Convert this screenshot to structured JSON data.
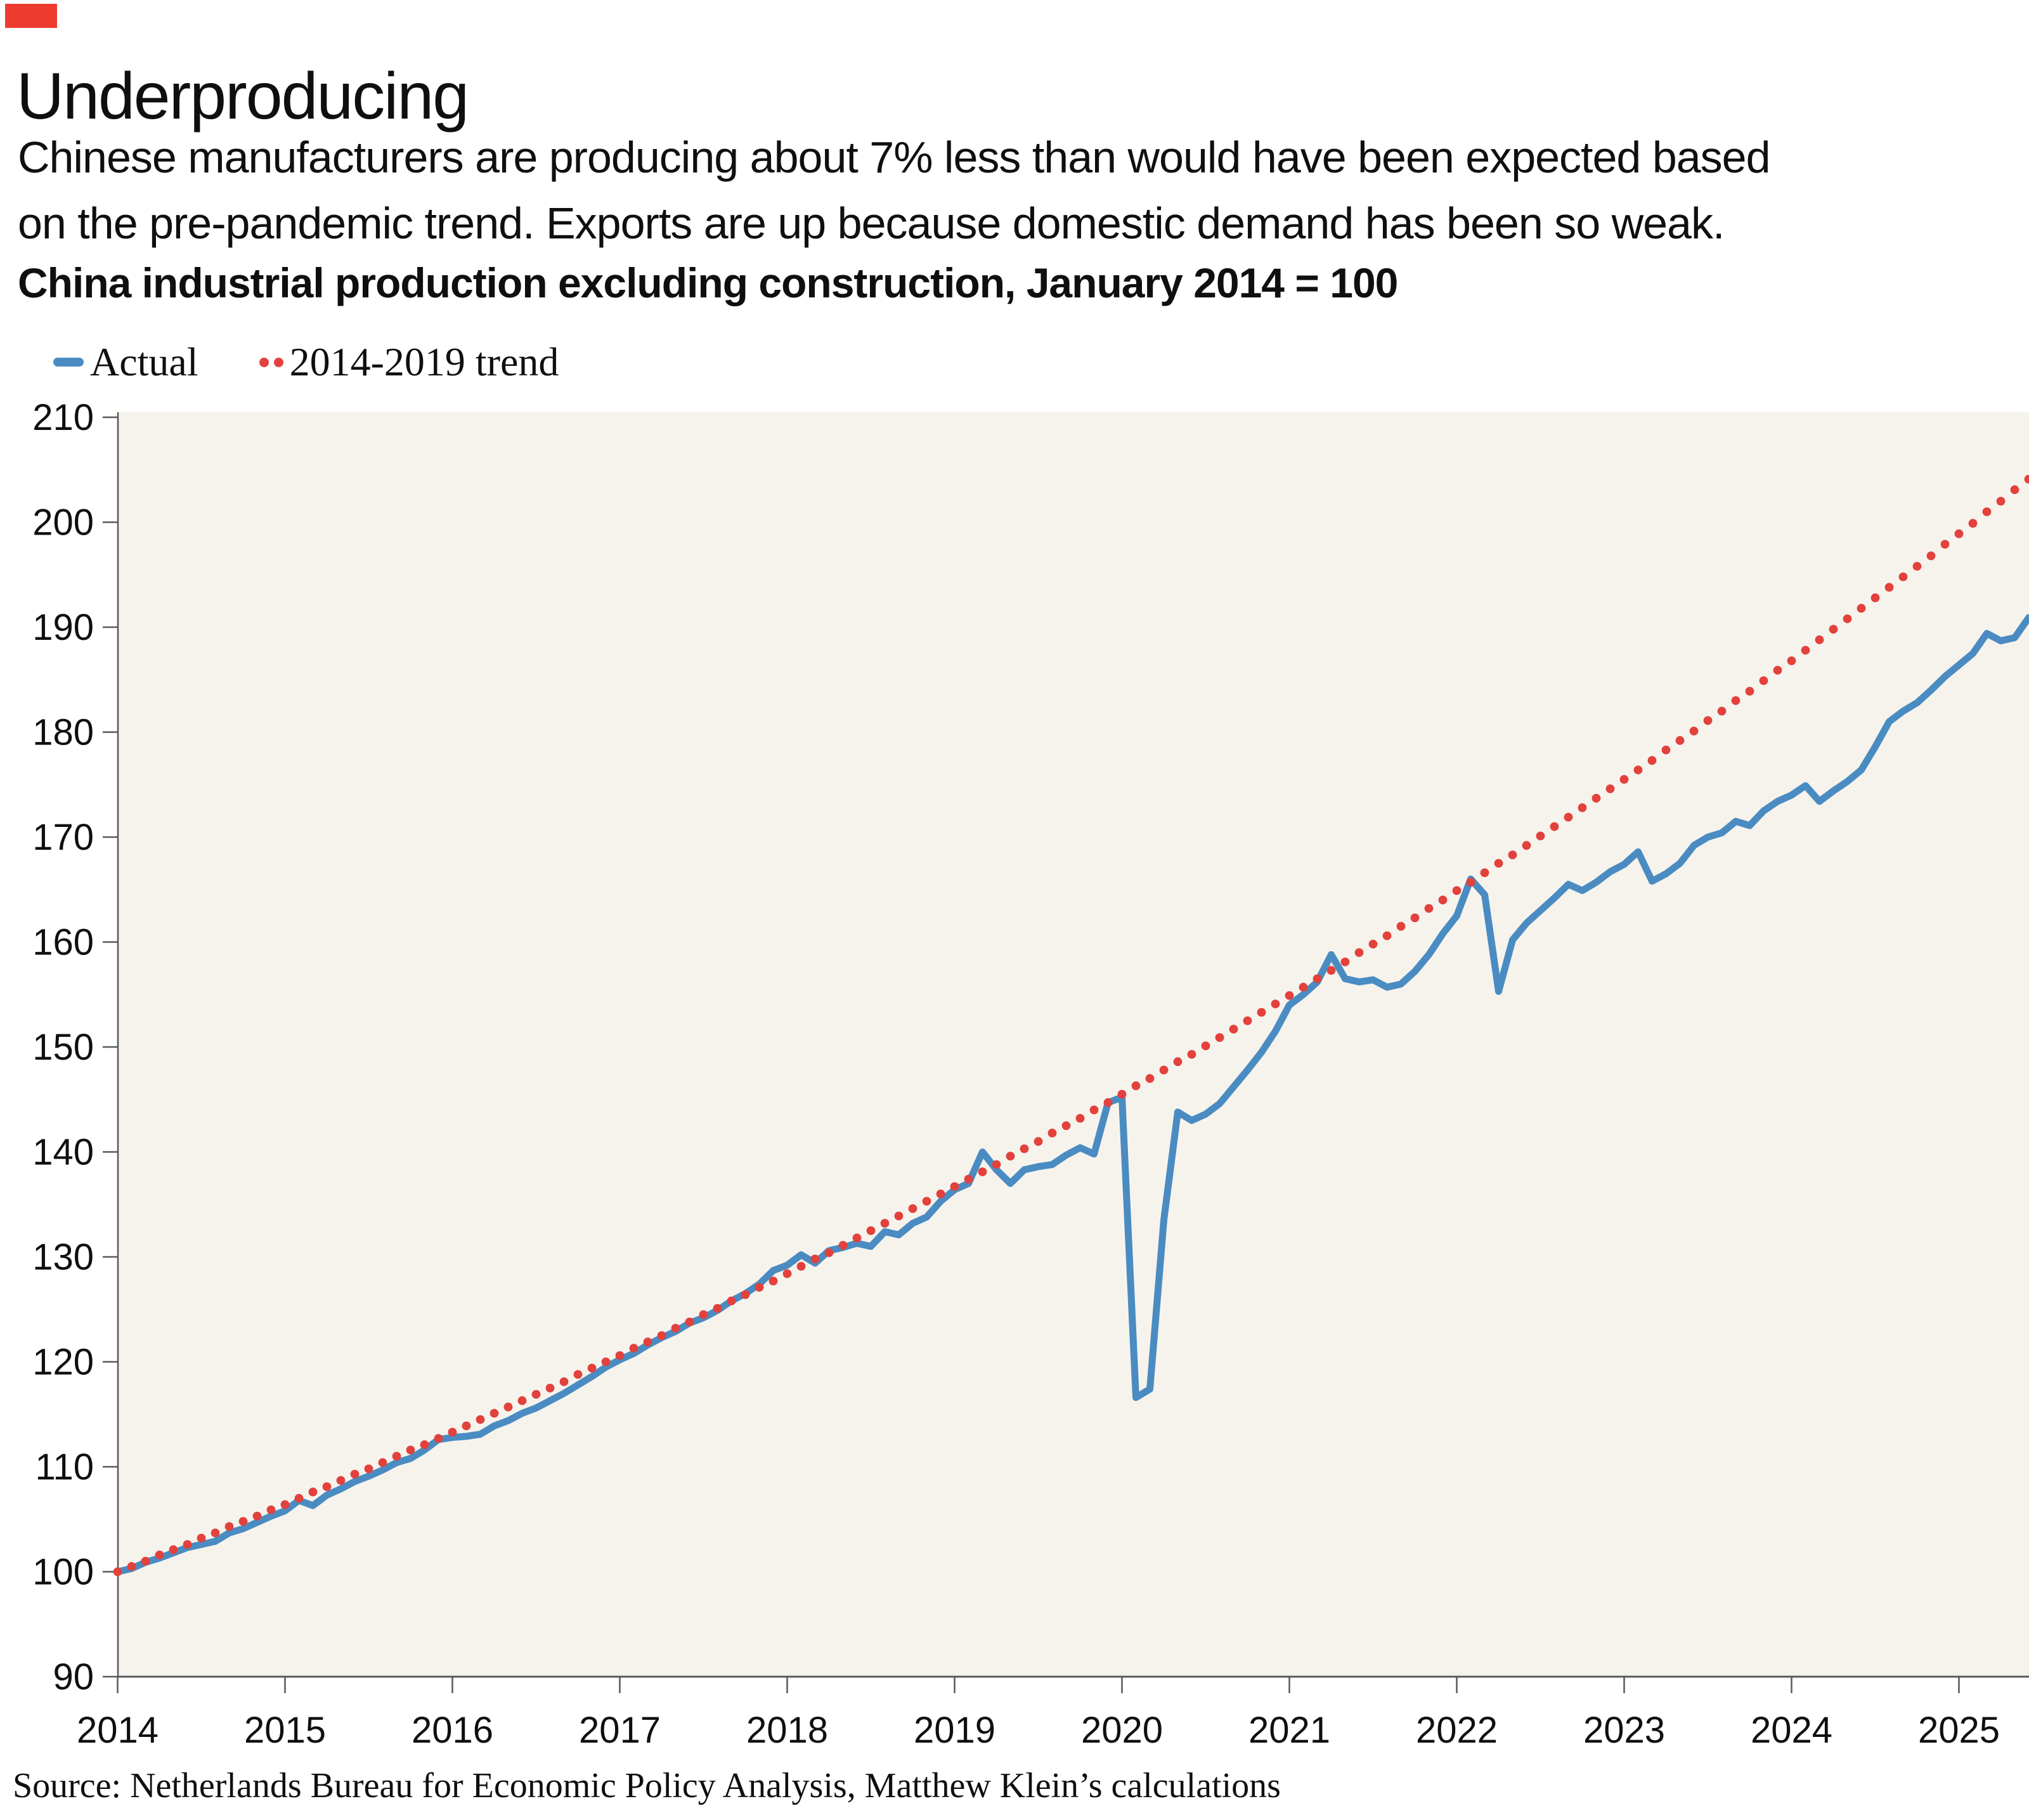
{
  "brand": {
    "color": "#ed3b2f"
  },
  "header": {
    "title": "Underproducing",
    "subtitle_line1": "Chinese manufacturers are producing about 7% less than would have been expected based",
    "subtitle_line2": "on the pre-pandemic trend. Exports are up because domestic demand has been so weak.",
    "chart_title": "China industrial production excluding construction, January 2014 = 100"
  },
  "legend": {
    "items": [
      {
        "label": "Actual",
        "color": "#4a8cc2",
        "style": "line"
      },
      {
        "label": "2014-2019 trend",
        "color": "#e2413c",
        "style": "dotted"
      }
    ]
  },
  "source": "Source: Netherlands Bureau for Economic Policy Analysis, Matthew Klein’s calculations",
  "chart_data": {
    "type": "line",
    "title": "China industrial production excluding construction, January 2014 = 100",
    "frequency": "monthly",
    "x_start": {
      "year": 2014,
      "month": 1
    },
    "x_end": {
      "year": 2025,
      "month": 6
    },
    "x_tick_labels": [
      "2014",
      "2015",
      "2016",
      "2017",
      "2018",
      "2019",
      "2020",
      "2021",
      "2022",
      "2023",
      "2024",
      "2025"
    ],
    "y_ticks": [
      90,
      100,
      110,
      120,
      130,
      140,
      150,
      160,
      170,
      180,
      190,
      200,
      210
    ],
    "ylim": [
      90,
      210.5
    ],
    "grid": false,
    "legend_position": "top-left",
    "plot_background": "#f6f3ed",
    "axis_color": "#58595b",
    "series": [
      {
        "name": "Actual",
        "style": "solid",
        "color": "#4a8cc2",
        "values": [
          100.0,
          100.3,
          100.9,
          101.3,
          101.8,
          102.3,
          102.6,
          102.9,
          103.7,
          104.1,
          104.7,
          105.3,
          105.8,
          106.8,
          106.3,
          107.3,
          107.9,
          108.6,
          109.1,
          109.7,
          110.4,
          110.8,
          111.6,
          112.6,
          112.8,
          112.9,
          113.1,
          113.9,
          114.4,
          115.1,
          115.6,
          116.3,
          117.0,
          117.8,
          118.6,
          119.5,
          120.2,
          120.8,
          121.6,
          122.3,
          122.9,
          123.7,
          124.2,
          124.9,
          125.8,
          126.5,
          127.4,
          128.7,
          129.2,
          130.2,
          129.4,
          130.6,
          130.9,
          131.3,
          131.0,
          132.4,
          132.1,
          133.2,
          133.8,
          135.3,
          136.4,
          137.0,
          140.0,
          138.3,
          137.0,
          138.3,
          138.6,
          138.8,
          139.7,
          140.4,
          139.8,
          144.7,
          145.2,
          116.6,
          117.4,
          133.5,
          143.8,
          143.0,
          143.6,
          144.6,
          146.2,
          147.8,
          149.5,
          151.5,
          154.0,
          155.0,
          156.2,
          158.8,
          156.5,
          156.2,
          156.4,
          155.7,
          156.0,
          157.2,
          158.8,
          160.8,
          162.5,
          166.0,
          164.5,
          155.3,
          160.2,
          161.8,
          163.0,
          164.2,
          165.5,
          164.9,
          165.7,
          166.7,
          167.4,
          168.6,
          165.8,
          166.5,
          167.5,
          169.2,
          170.0,
          170.4,
          171.5,
          171.1,
          172.5,
          173.4,
          174.0,
          174.9,
          173.4,
          174.4,
          175.3,
          176.4,
          178.6,
          181.0,
          182.0,
          182.8,
          184.0,
          185.3,
          186.4,
          187.5,
          189.4,
          188.7,
          189.0,
          190.9
        ]
      },
      {
        "name": "2014-2019 trend",
        "style": "dotted",
        "color": "#e2413c",
        "values": [
          100.0,
          100.5,
          101.0,
          101.6,
          102.1,
          102.6,
          103.2,
          103.7,
          104.3,
          104.8,
          105.3,
          105.9,
          106.4,
          107.0,
          107.6,
          108.1,
          108.7,
          109.3,
          109.8,
          110.4,
          111.0,
          111.6,
          112.1,
          112.7,
          113.3,
          113.9,
          114.5,
          115.1,
          115.7,
          116.3,
          116.9,
          117.5,
          118.1,
          118.8,
          119.4,
          120.0,
          120.6,
          121.3,
          121.9,
          122.5,
          123.2,
          123.8,
          124.5,
          125.1,
          125.8,
          126.4,
          127.1,
          127.7,
          128.4,
          129.1,
          129.8,
          130.4,
          131.1,
          131.8,
          132.5,
          133.2,
          133.9,
          134.6,
          135.3,
          136.0,
          136.7,
          137.4,
          138.1,
          138.8,
          139.6,
          140.3,
          141.0,
          141.8,
          142.5,
          143.2,
          144.0,
          144.7,
          145.5,
          146.3,
          147.0,
          147.8,
          148.6,
          149.3,
          150.1,
          150.9,
          151.7,
          152.5,
          153.3,
          154.1,
          154.9,
          155.7,
          156.5,
          157.3,
          158.1,
          159.0,
          159.8,
          160.6,
          161.5,
          162.3,
          163.2,
          164.0,
          164.9,
          165.7,
          166.6,
          167.5,
          168.3,
          169.2,
          170.1,
          171.0,
          171.9,
          172.8,
          173.7,
          174.6,
          175.5,
          176.4,
          177.3,
          178.3,
          179.2,
          180.1,
          181.1,
          182.0,
          183.0,
          183.9,
          184.9,
          185.9,
          186.8,
          187.8,
          188.8,
          189.8,
          190.8,
          191.8,
          192.8,
          193.8,
          194.8,
          195.8,
          196.8,
          197.9,
          198.9,
          199.9,
          201.0,
          202.0,
          203.1,
          204.1
        ]
      }
    ]
  }
}
